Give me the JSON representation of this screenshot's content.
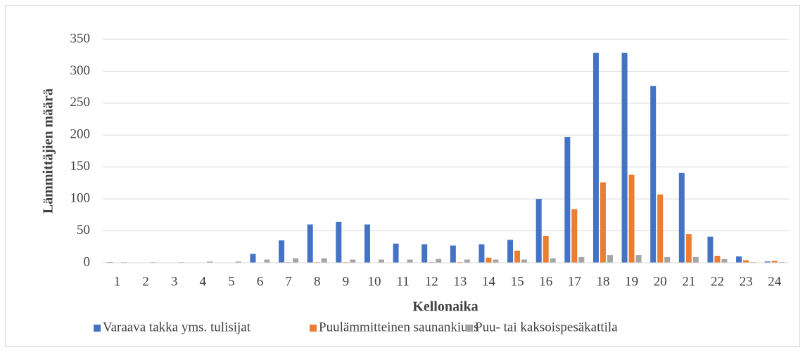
{
  "chart_data": {
    "type": "bar",
    "x_label": "Kellonaika",
    "y_label": "Lämmittäjien määrä",
    "categories": [
      "1",
      "2",
      "3",
      "4",
      "5",
      "6",
      "7",
      "8",
      "9",
      "10",
      "11",
      "12",
      "13",
      "14",
      "15",
      "16",
      "17",
      "18",
      "19",
      "20",
      "21",
      "22",
      "23",
      "24"
    ],
    "series": [
      {
        "name": "Varaava takka yms. tulisijat",
        "color": "#4472c4",
        "values": [
          1,
          0,
          0,
          0,
          0,
          14,
          35,
          60,
          64,
          60,
          30,
          29,
          27,
          29,
          36,
          100,
          197,
          329,
          329,
          277,
          141,
          41,
          10,
          2
        ]
      },
      {
        "name": "Puulämmitteinen saunankiuas",
        "color": "#ed7d31",
        "values": [
          0,
          0,
          0,
          0,
          0,
          0,
          1,
          1,
          1,
          0,
          0,
          1,
          1,
          8,
          19,
          42,
          84,
          126,
          138,
          107,
          45,
          11,
          4,
          3
        ]
      },
      {
        "name": "Puu- tai kaksoispesäkattila",
        "color": "#a5a5a5",
        "values": [
          1,
          1,
          1,
          2,
          2,
          5,
          7,
          7,
          5,
          5,
          5,
          6,
          5,
          5,
          5,
          7,
          9,
          12,
          12,
          9,
          9,
          6,
          1,
          1
        ]
      }
    ],
    "ylim": [
      0,
      350
    ],
    "yticks": [
      0,
      50,
      100,
      150,
      200,
      250,
      300,
      350
    ],
    "grid": true,
    "legend": "bottom"
  }
}
